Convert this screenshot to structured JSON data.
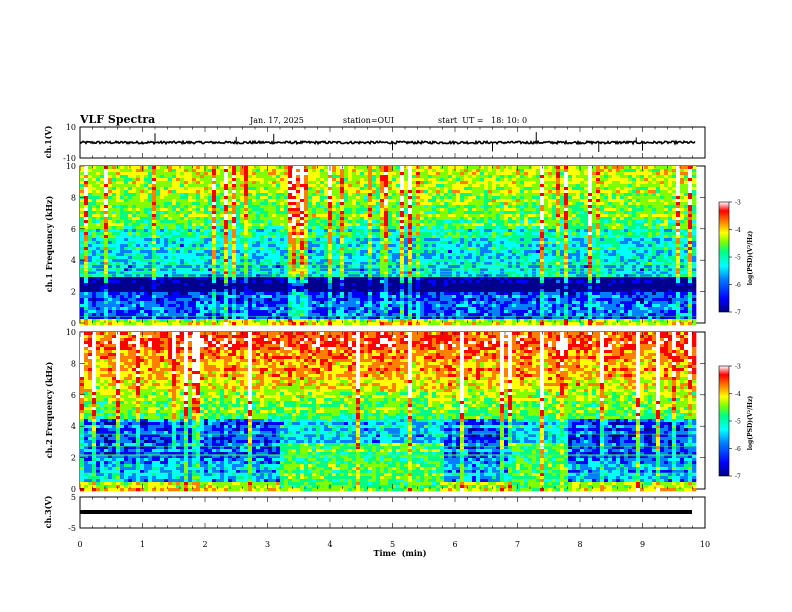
{
  "header": {
    "title": "VLF Spectra",
    "date": "Jan. 17, 2025",
    "station": "station=OUI",
    "start": "start  UT =   18: 10: 0"
  },
  "chart_data": [
    {
      "type": "line",
      "panel": "ch1-waveform",
      "ylabel": "ch.1(V)",
      "ylim": [
        -10,
        10
      ],
      "y_ticks": [
        "10",
        "-10"
      ],
      "series": [
        {
          "baseline": 0,
          "noise_amplitude": 0.8,
          "spikes_x": [
            1.2,
            2.5,
            3.1,
            5.0,
            6.6,
            7.3,
            8.3,
            8.9,
            9.0
          ]
        }
      ],
      "color": "#000000"
    },
    {
      "type": "heatmap",
      "panel": "ch1-spectrogram",
      "ylabel": "ch.1\nFrequency (kHz)",
      "ylim": [
        0,
        10
      ],
      "y_ticks": [
        "0",
        "2",
        "4",
        "6",
        "8",
        "10"
      ],
      "colorbar": {
        "label": "log(PSD)(V²/Hz)",
        "range": [
          -7,
          -3
        ],
        "ticks": [
          "-3",
          "-4",
          "-5",
          "-6",
          "-7"
        ]
      },
      "background_level": -5.8,
      "high_band_level": -5.0,
      "dark_band_khz": [
        2.0,
        3.0
      ]
    },
    {
      "type": "heatmap",
      "panel": "ch2-spectrogram",
      "ylabel": "ch.2\nFrequency (kHz)",
      "ylim": [
        0,
        10
      ],
      "y_ticks": [
        "0",
        "2",
        "4",
        "6",
        "8",
        "10"
      ],
      "colorbar": {
        "label": "log(PSD)(V²/Hz)",
        "range": [
          -7,
          -3
        ],
        "ticks": [
          "-3",
          "-4",
          "-5",
          "-6",
          "-7"
        ]
      },
      "upper_band_level": -4.2,
      "elevated_segments_min": [
        [
          3.2,
          5.8
        ],
        [
          6.9,
          7.8
        ]
      ]
    },
    {
      "type": "line",
      "panel": "ch3-waveform",
      "ylabel": "ch.3(V)",
      "ylim": [
        -5,
        5
      ],
      "y_ticks": [
        "5",
        "-5"
      ],
      "series": [
        {
          "baseline": 0,
          "thickness": "heavy"
        }
      ],
      "color": "#000000"
    }
  ],
  "xaxis": {
    "label": "Time  (min)",
    "xlim": [
      0,
      10
    ],
    "ticks": [
      "0",
      "1",
      "2",
      "3",
      "4",
      "5",
      "6",
      "7",
      "8",
      "9",
      "10"
    ],
    "data_end_min": 9.85
  },
  "colors": {
    "palette": [
      "#00008f",
      "#0000ff",
      "#0080ff",
      "#00ffff",
      "#00ff80",
      "#80ff00",
      "#ffff00",
      "#ff8000",
      "#ff0000",
      "#ffffff"
    ]
  }
}
